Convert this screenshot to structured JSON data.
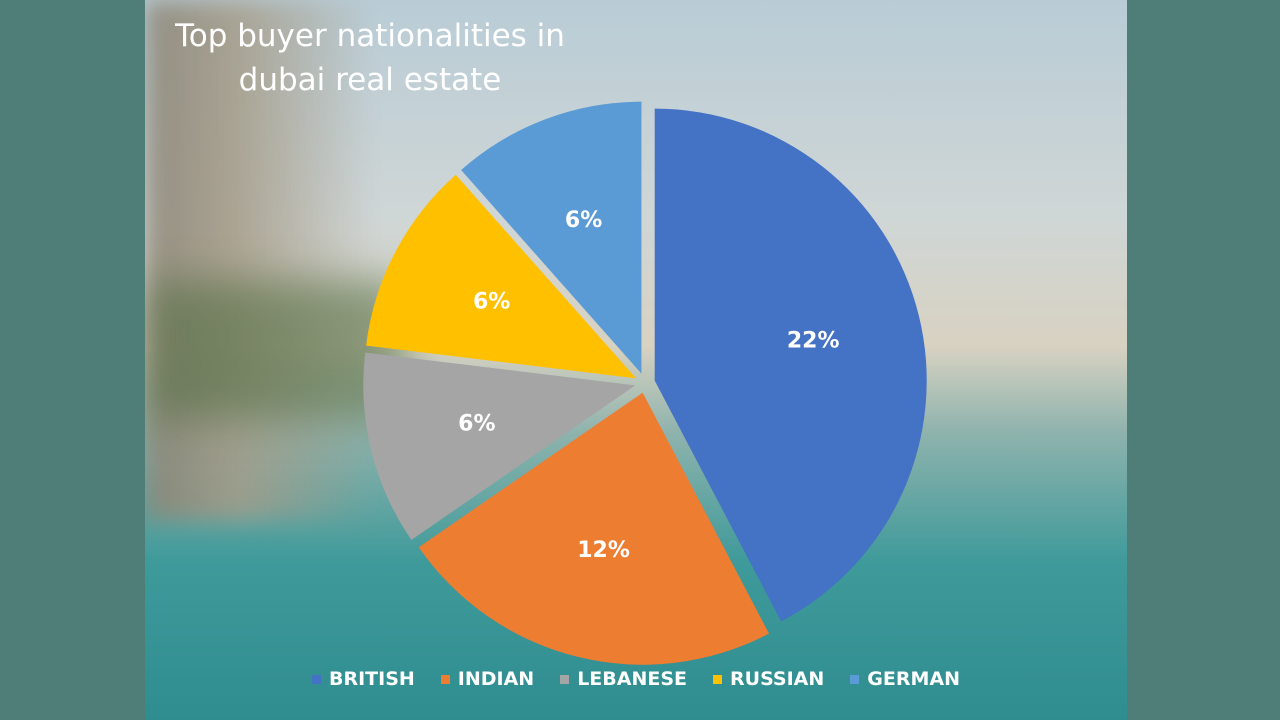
{
  "chart_data": {
    "type": "pie",
    "title": "Top buyer nationalities in dubai real estate",
    "categories": [
      "BRITISH",
      "INDIAN",
      "LEBANESE",
      "RUSSIAN",
      "GERMAN"
    ],
    "values": [
      22,
      12,
      6,
      6,
      6
    ],
    "value_labels": [
      "22%",
      "12%",
      "6%",
      "6%",
      "6%"
    ],
    "colors": [
      "#4472c4",
      "#ed7d31",
      "#a5a5a5",
      "#ffc000",
      "#5b9bd5"
    ],
    "legend": "bottom"
  }
}
